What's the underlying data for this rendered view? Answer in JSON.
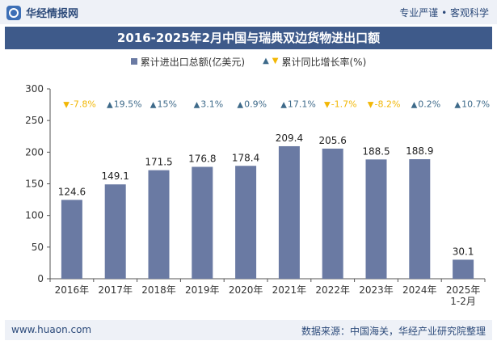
{
  "header": {
    "brand": "华经情报网",
    "tagline": "专业严谨 • 客观科学"
  },
  "title": "2016-2025年2月中国与瑞典双边货物进出口额",
  "legend": {
    "bar_label": "累计进出口总额(亿美元)",
    "growth_label": "累计同比增长率(%)"
  },
  "footer": {
    "website": "www.huaon.com",
    "source": "数据来源：中国海关，华经产业研究院整理"
  },
  "colors": {
    "bar": "#6a7aa3",
    "up": "#3e6a8a",
    "down": "#f2b705",
    "title_bg": "#3e5a8a"
  },
  "chart_data": {
    "type": "bar",
    "title": "2016-2025年2月中国与瑞典双边货物进出口额",
    "categories": [
      "2016年",
      "2017年",
      "2018年",
      "2019年",
      "2020年",
      "2021年",
      "2022年",
      "2023年",
      "2024年",
      "2025年\n1-2月"
    ],
    "series": [
      {
        "name": "累计进出口总额(亿美元)",
        "values": [
          124.6,
          149.1,
          171.5,
          176.8,
          178.4,
          209.4,
          205.6,
          188.5,
          188.9,
          30.1
        ]
      },
      {
        "name": "累计同比增长率(%)",
        "values": [
          -7.8,
          19.5,
          15,
          3.1,
          0.9,
          17.1,
          -1.7,
          -8.2,
          0.2,
          10.7
        ],
        "labels": [
          "-7.8%",
          "19.5%",
          "15%",
          "3.1%",
          "0.9%",
          "17.1%",
          "-1.7%",
          "-8.2%",
          "0.2%",
          "10.7%"
        ]
      }
    ],
    "value_labels": [
      "124.6",
      "149.1",
      "171.5",
      "176.8",
      "178.4",
      "209.4",
      "205.6",
      "188.5",
      "188.9",
      "30.1"
    ],
    "ylim": [
      0,
      300
    ],
    "yticks": [
      0,
      50,
      100,
      150,
      200,
      250,
      300
    ],
    "xlabel": "",
    "ylabel": "",
    "grid": false,
    "legend_position": "top"
  }
}
